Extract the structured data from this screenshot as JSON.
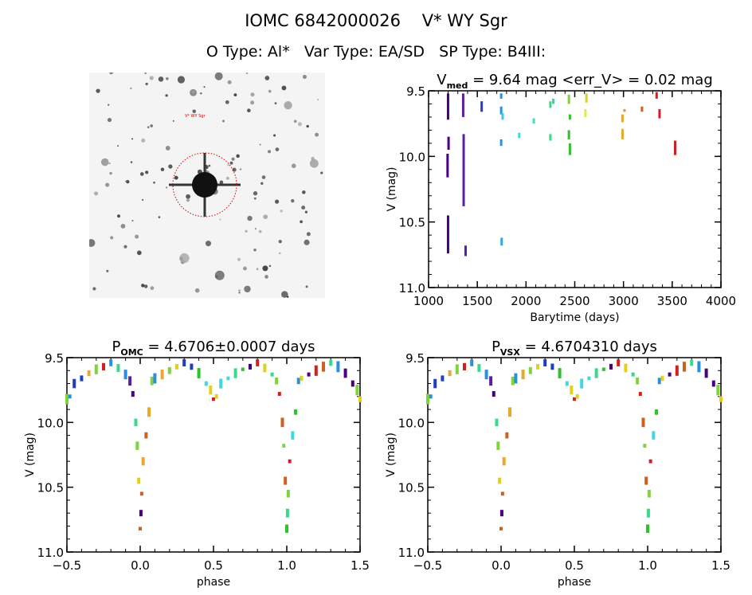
{
  "header": {
    "title": "IOMC 6842000026    V* WY Sgr",
    "subtitle": "O Type: Al*   Var Type: EA/SD   SP Type: B4III:"
  },
  "image_panel": {
    "target_label": "V* WY Sgr",
    "finder_circle_color": "#cc0000"
  },
  "chart_data": [
    {
      "type": "scatter",
      "id": "lightcurve",
      "title_main": "V",
      "title_sub": "med",
      "title_rest": " = 9.64 mag <err_V> = 0.02 mag",
      "xlabel": "Barytime (days)",
      "ylabel": "V (mag)",
      "xlim": [
        1000,
        4000
      ],
      "ylim": [
        11.0,
        9.5
      ],
      "xticks": [
        "1000",
        "1500",
        "2000",
        "2500",
        "3000",
        "3500",
        "4000"
      ],
      "yticks": [
        "9.5",
        "10.0",
        "10.5",
        "11.0"
      ],
      "segments": [
        {
          "t": 1200,
          "v0": 9.52,
          "v1": 9.72,
          "color": "#4b0082"
        },
        {
          "t": 1205,
          "v0": 9.85,
          "v1": 9.95,
          "color": "#4b0082"
        },
        {
          "t": 1195,
          "v0": 9.98,
          "v1": 10.16,
          "color": "#4b0082"
        },
        {
          "t": 1200,
          "v0": 10.45,
          "v1": 10.74,
          "color": "#4b0082"
        },
        {
          "t": 1355,
          "v0": 9.52,
          "v1": 9.7,
          "color": "#5a1ea0"
        },
        {
          "t": 1360,
          "v0": 9.83,
          "v1": 10.38,
          "color": "#5a1ea0"
        },
        {
          "t": 1380,
          "v0": 10.68,
          "v1": 10.76,
          "color": "#5a1ea0"
        },
        {
          "t": 1545,
          "v0": 9.58,
          "v1": 9.66,
          "color": "#1f3fbf"
        },
        {
          "t": 1745,
          "v0": 9.52,
          "v1": 9.56,
          "color": "#2a8fdc"
        },
        {
          "t": 1745,
          "v0": 9.62,
          "v1": 9.68,
          "color": "#2a8fdc"
        },
        {
          "t": 1760,
          "v0": 9.67,
          "v1": 9.72,
          "color": "#40c8e8"
        },
        {
          "t": 1745,
          "v0": 9.87,
          "v1": 9.92,
          "color": "#2a8fdc"
        },
        {
          "t": 1750,
          "v0": 10.62,
          "v1": 10.68,
          "color": "#2ea8e0"
        },
        {
          "t": 1930,
          "v0": 9.82,
          "v1": 9.86,
          "color": "#40d8e0"
        },
        {
          "t": 2080,
          "v0": 9.71,
          "v1": 9.75,
          "color": "#40e0c0"
        },
        {
          "t": 2250,
          "v0": 9.58,
          "v1": 9.63,
          "color": "#3ad88a"
        },
        {
          "t": 2250,
          "v0": 9.83,
          "v1": 9.88,
          "color": "#3ad88a"
        },
        {
          "t": 2280,
          "v0": 9.56,
          "v1": 9.6,
          "color": "#3ad88a"
        },
        {
          "t": 2440,
          "v0": 9.53,
          "v1": 9.6,
          "color": "#7fd43a"
        },
        {
          "t": 2450,
          "v0": 9.68,
          "v1": 9.72,
          "color": "#30c030"
        },
        {
          "t": 2440,
          "v0": 9.8,
          "v1": 9.87,
          "color": "#30c030"
        },
        {
          "t": 2450,
          "v0": 9.9,
          "v1": 9.99,
          "color": "#30c030"
        },
        {
          "t": 2620,
          "v0": 9.52,
          "v1": 9.59,
          "color": "#e0d020"
        },
        {
          "t": 2610,
          "v0": 9.64,
          "v1": 9.7,
          "color": "#e8e840"
        },
        {
          "t": 2990,
          "v0": 9.68,
          "v1": 9.74,
          "color": "#e8a830"
        },
        {
          "t": 2990,
          "v0": 9.79,
          "v1": 9.87,
          "color": "#e8a830"
        },
        {
          "t": 3010,
          "v0": 9.64,
          "v1": 9.66,
          "color": "#e89030"
        },
        {
          "t": 3190,
          "v0": 9.62,
          "v1": 9.66,
          "color": "#d06020"
        },
        {
          "t": 3340,
          "v0": 9.51,
          "v1": 9.56,
          "color": "#d02020"
        },
        {
          "t": 3370,
          "v0": 9.64,
          "v1": 9.71,
          "color": "#d02020"
        },
        {
          "t": 3530,
          "v0": 9.88,
          "v1": 9.99,
          "color": "#d02020"
        }
      ]
    },
    {
      "type": "scatter",
      "id": "phase-omc",
      "title_main": "P",
      "title_sub": "OMC",
      "title_rest": " = 4.6706±0.0007 days",
      "xlabel": "phase",
      "ylabel": "V (mag)",
      "xlim": [
        -0.5,
        1.5
      ],
      "ylim": [
        11.0,
        9.5
      ],
      "xticks": [
        "-0.5",
        "0.0",
        "0.5",
        "1.0",
        "1.5"
      ],
      "yticks": [
        "9.5",
        "10.0",
        "10.5",
        "11.0"
      ]
    },
    {
      "type": "scatter",
      "id": "phase-vsx",
      "title_main": "P",
      "title_sub": "VSX",
      "title_rest": " = 4.6704310 days",
      "xlabel": "phase",
      "ylabel": "V (mag)",
      "xlim": [
        -0.5,
        1.5
      ],
      "ylim": [
        11.0,
        9.5
      ],
      "xticks": [
        "-0.5",
        "0.0",
        "0.5",
        "1.0",
        "1.5"
      ],
      "yticks": [
        "9.5",
        "10.0",
        "10.5",
        "11.0"
      ]
    }
  ],
  "phase_curve": {
    "description": "One cycle, phase 0..1 (repeated); values in mag",
    "points": [
      {
        "p": 0.0,
        "v": 10.82
      },
      {
        "p": 0.005,
        "v": 10.7
      },
      {
        "p": 0.01,
        "v": 10.55
      },
      {
        "p": 0.02,
        "v": 10.3
      },
      {
        "p": 0.04,
        "v": 10.1
      },
      {
        "p": 0.06,
        "v": 9.92
      },
      {
        "p": 0.08,
        "v": 9.68
      },
      {
        "p": 0.1,
        "v": 9.66
      },
      {
        "p": 0.15,
        "v": 9.63
      },
      {
        "p": 0.2,
        "v": 9.6
      },
      {
        "p": 0.25,
        "v": 9.57
      },
      {
        "p": 0.3,
        "v": 9.54
      },
      {
        "p": 0.35,
        "v": 9.57
      },
      {
        "p": 0.4,
        "v": 9.62
      },
      {
        "p": 0.45,
        "v": 9.7
      },
      {
        "p": 0.48,
        "v": 9.75
      },
      {
        "p": 0.5,
        "v": 9.82
      },
      {
        "p": 0.52,
        "v": 9.8
      },
      {
        "p": 0.55,
        "v": 9.7
      },
      {
        "p": 0.6,
        "v": 9.66
      },
      {
        "p": 0.65,
        "v": 9.62
      },
      {
        "p": 0.7,
        "v": 9.59
      },
      {
        "p": 0.75,
        "v": 9.57
      },
      {
        "p": 0.8,
        "v": 9.54
      },
      {
        "p": 0.85,
        "v": 9.58
      },
      {
        "p": 0.9,
        "v": 9.63
      },
      {
        "p": 0.93,
        "v": 9.68
      },
      {
        "p": 0.95,
        "v": 9.78
      },
      {
        "p": 0.97,
        "v": 10.0
      },
      {
        "p": 0.98,
        "v": 10.18
      },
      {
        "p": 0.99,
        "v": 10.45
      }
    ],
    "colors": [
      "#4b0082",
      "#5a1ea0",
      "#1f3fbf",
      "#2a8fdc",
      "#40d8e0",
      "#3ad88a",
      "#30c030",
      "#7fd43a",
      "#e0d020",
      "#e8a830",
      "#d06020",
      "#d02020"
    ]
  }
}
